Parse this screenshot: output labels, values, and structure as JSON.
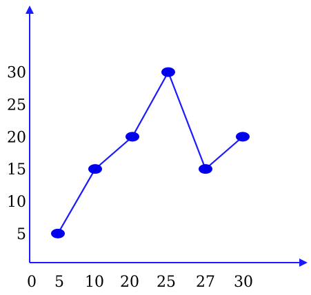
{
  "chart_data": {
    "type": "line",
    "title": "",
    "xlabel": "",
    "ylabel": "",
    "x_tick_labels": [
      "0",
      "5",
      "10",
      "20",
      "25",
      "27",
      "30"
    ],
    "y_ticks": [
      5,
      10,
      15,
      20,
      25,
      30
    ],
    "ylim": [
      0,
      33
    ],
    "grid": false,
    "categories": [
      "5",
      "10",
      "20",
      "25",
      "27",
      "30"
    ],
    "series": [
      {
        "values": [
          5,
          15,
          20,
          30,
          15,
          20
        ]
      }
    ],
    "colors": {
      "line": "#1a1aff",
      "marker": "#0000ee",
      "axis": "#1a1aff"
    }
  }
}
